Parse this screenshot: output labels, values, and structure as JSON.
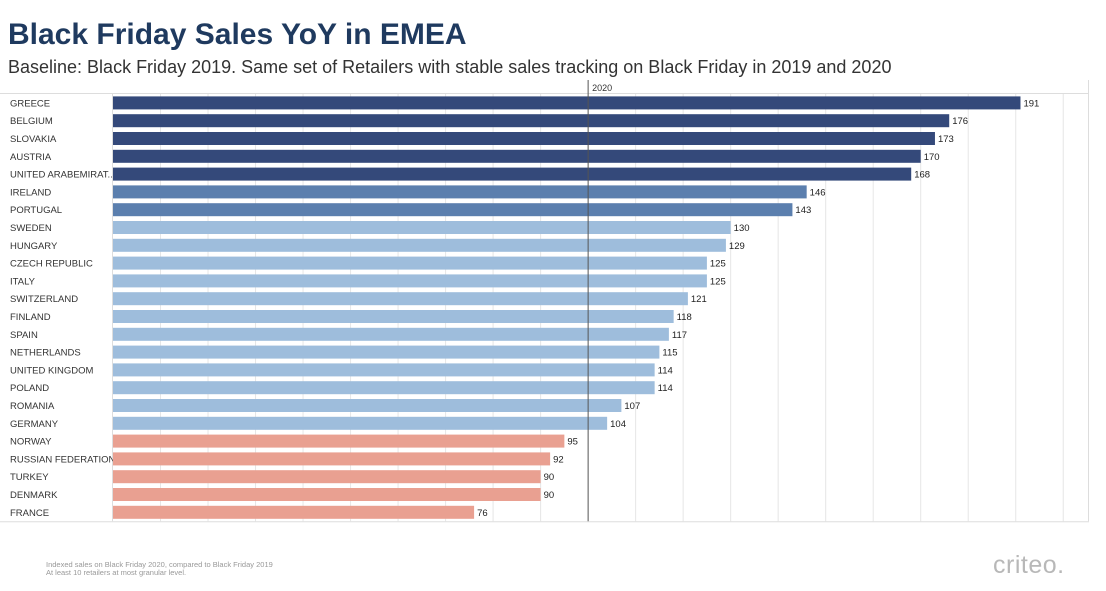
{
  "header": {
    "title": "Black Friday Sales YoY in EMEA",
    "subtitle": "Baseline: Black Friday 2019. Same set of Retailers with stable sales tracking on Black Friday in 2019 and 2020"
  },
  "footer": {
    "note_line1": "Indexed sales on Black Friday 2020, compared to Black Friday 2019",
    "note_line2": "At least 10 retailers at most granular level.",
    "logo": "criteo."
  },
  "colors": {
    "high": "#34497a",
    "mid": "#5b7fae",
    "low": "#9ebddc",
    "below": "#e9a091",
    "grid": "#e6e6e6",
    "reference": "#555555"
  },
  "chart_data": {
    "type": "bar",
    "orientation": "horizontal",
    "column_header": "2020",
    "reference_line": 100,
    "xlim": [
      0,
      205
    ],
    "grid": true,
    "categories": [
      "GREECE",
      "BELGIUM",
      "SLOVAKIA",
      "AUSTRIA",
      "UNITED ARABEMIRAT..",
      "IRELAND",
      "PORTUGAL",
      "SWEDEN",
      "HUNGARY",
      "CZECH REPUBLIC",
      "ITALY",
      "SWITZERLAND",
      "FINLAND",
      "SPAIN",
      "NETHERLANDS",
      "UNITED KINGDOM",
      "POLAND",
      "ROMANIA",
      "GERMANY",
      "NORWAY",
      "RUSSIAN FEDERATION",
      "TURKEY",
      "DENMARK",
      "FRANCE"
    ],
    "values": [
      191,
      176,
      173,
      170,
      168,
      146,
      143,
      130,
      129,
      125,
      125,
      121,
      118,
      117,
      115,
      114,
      114,
      107,
      104,
      95,
      92,
      90,
      90,
      76
    ],
    "bar_color_groups": [
      "high",
      "high",
      "high",
      "high",
      "high",
      "mid",
      "mid",
      "low",
      "low",
      "low",
      "low",
      "low",
      "low",
      "low",
      "low",
      "low",
      "low",
      "low",
      "low",
      "below",
      "below",
      "below",
      "below",
      "below"
    ]
  }
}
